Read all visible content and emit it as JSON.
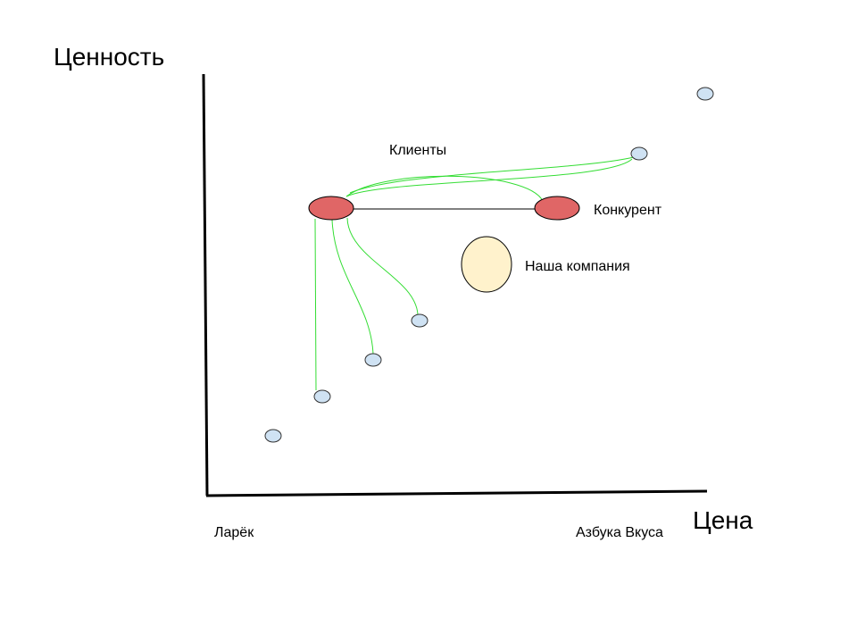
{
  "axes": {
    "y_label": "Ценность",
    "x_label": "Цена",
    "x_min_label": "Ларёк",
    "x_max_label": "Азбука Вкуса"
  },
  "labels": {
    "clients": "Клиенты",
    "competitor": "Конкурент",
    "our_company": "Наша компания"
  }
}
